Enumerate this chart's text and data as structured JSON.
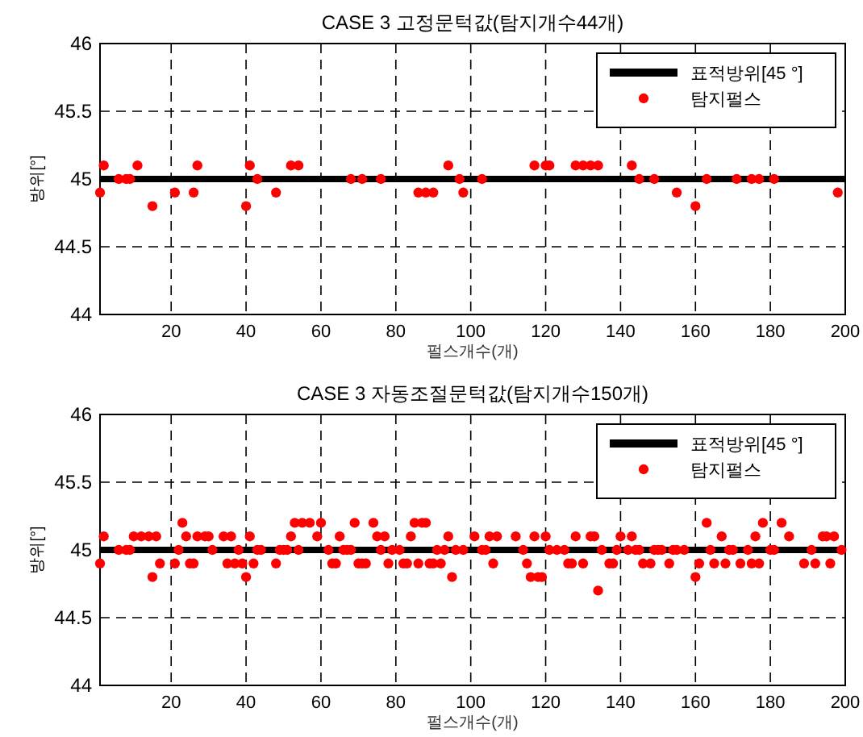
{
  "chart_data": [
    {
      "type": "scatter",
      "title": "CASE 3 고정문턱값(탐지개수44개)",
      "xlabel": "펄스개수(개)",
      "ylabel": "방위[°]",
      "xlim": [
        1,
        200
      ],
      "xticks": [
        20,
        40,
        60,
        80,
        100,
        120,
        140,
        160,
        180,
        200
      ],
      "ylim": [
        44,
        46
      ],
      "yticks": [
        44,
        44.5,
        45,
        45.5,
        46
      ],
      "grid": true,
      "legend": "top right",
      "series": [
        {
          "name": "표적방위[45 °]",
          "type": "line",
          "marker": "none",
          "color": "#000000",
          "x": [
            1,
            200
          ],
          "values": [
            45,
            45
          ]
        },
        {
          "name": "탐지펄스",
          "type": "scatter",
          "marker": "circle",
          "color": "#ff0000",
          "x": [
            1,
            2,
            6,
            8,
            9,
            11,
            15,
            21,
            26,
            27,
            40,
            41,
            43,
            48,
            52,
            54,
            68,
            71,
            76,
            86,
            88,
            90,
            94,
            97,
            98,
            103,
            117,
            120,
            121,
            128,
            130,
            132,
            134,
            143,
            145,
            149,
            155,
            160,
            163,
            171,
            175,
            177,
            181,
            198
          ],
          "values": [
            44.9,
            45.1,
            45,
            45,
            45,
            45.1,
            44.8,
            44.9,
            44.9,
            45.1,
            44.8,
            45.1,
            45,
            44.9,
            45.1,
            45.1,
            45,
            45,
            45,
            44.9,
            44.9,
            44.9,
            45.1,
            45,
            44.9,
            45,
            45.1,
            45.1,
            45.1,
            45.1,
            45.1,
            45.1,
            45.1,
            45.1,
            45,
            45,
            44.9,
            44.8,
            45,
            45,
            45,
            45,
            45,
            44.9
          ]
        }
      ]
    },
    {
      "type": "scatter",
      "title": "CASE 3 자동조절문턱값(탐지개수150개)",
      "xlabel": "펄스개수(개)",
      "ylabel": "방위[°]",
      "xlim": [
        1,
        200
      ],
      "xticks": [
        20,
        40,
        60,
        80,
        100,
        120,
        140,
        160,
        180,
        200
      ],
      "ylim": [
        44,
        46
      ],
      "yticks": [
        44,
        44.5,
        45,
        45.5,
        46
      ],
      "grid": true,
      "legend": "top right",
      "series": [
        {
          "name": "표적방위[45 °]",
          "type": "line",
          "marker": "none",
          "color": "#000000",
          "x": [
            1,
            200
          ],
          "values": [
            45,
            45
          ]
        },
        {
          "name": "탐지펄스",
          "type": "scatter",
          "marker": "circle",
          "color": "#ff0000",
          "x": [
            1,
            2,
            6,
            8,
            9,
            10,
            12,
            14,
            15,
            16,
            17,
            21,
            22,
            23,
            24,
            25,
            26,
            27,
            29,
            30,
            31,
            34,
            35,
            36,
            37,
            38,
            39,
            40,
            41,
            42,
            43,
            44,
            48,
            49,
            50,
            51,
            52,
            53,
            54,
            55,
            57,
            59,
            60,
            62,
            63,
            64,
            65,
            66,
            67,
            68,
            69,
            70,
            71,
            72,
            74,
            75,
            76,
            77,
            78,
            79,
            81,
            82,
            83,
            84,
            85,
            86,
            87,
            88,
            89,
            90,
            91,
            92,
            93,
            94,
            95,
            96,
            98,
            101,
            103,
            104,
            105,
            106,
            107,
            112,
            114,
            115,
            116,
            117,
            118,
            119,
            120,
            121,
            123,
            125,
            126,
            127,
            128,
            130,
            132,
            133,
            134,
            135,
            137,
            138,
            139,
            140,
            142,
            143,
            144,
            145,
            146,
            148,
            149,
            150,
            151,
            153,
            154,
            155,
            157,
            160,
            161,
            163,
            164,
            165,
            167,
            168,
            169,
            170,
            172,
            174,
            175,
            176,
            177,
            178,
            180,
            181,
            183,
            185,
            189,
            191,
            192,
            194,
            195,
            196,
            197,
            199
          ],
          "values": [
            44.9,
            45.1,
            45,
            45,
            45,
            45.1,
            45.1,
            45.1,
            44.8,
            45.1,
            44.9,
            44.9,
            45,
            45.2,
            45.1,
            44.9,
            44.9,
            45.1,
            45.1,
            45.1,
            45,
            45.1,
            44.9,
            45.1,
            44.9,
            45,
            44.9,
            44.8,
            45.1,
            44.9,
            45,
            45,
            44.9,
            45,
            45,
            45,
            45.1,
            45.2,
            45,
            45.2,
            45.2,
            45.1,
            45.2,
            45,
            44.9,
            44.9,
            45.1,
            45,
            45,
            45,
            45.2,
            44.9,
            44.9,
            44.9,
            45.2,
            45.1,
            45,
            45.1,
            44.9,
            45,
            45,
            44.9,
            44.9,
            45.1,
            45.2,
            44.9,
            45.2,
            45.2,
            44.9,
            44.9,
            45,
            44.9,
            45,
            45.1,
            44.8,
            45,
            45,
            45.1,
            45,
            45,
            45.1,
            44.9,
            45.1,
            45.1,
            45,
            44.9,
            44.8,
            45.1,
            44.8,
            44.8,
            45.1,
            45,
            45,
            45,
            44.9,
            44.9,
            45.1,
            44.9,
            45.1,
            45.1,
            44.7,
            45,
            44.9,
            44.9,
            45,
            45.1,
            45,
            45.1,
            45,
            45,
            44.9,
            44.9,
            45,
            45,
            45,
            44.9,
            45,
            45,
            45,
            44.8,
            44.9,
            45.2,
            45,
            44.9,
            45.1,
            44.9,
            45,
            45,
            44.9,
            45,
            44.9,
            45.1,
            44.9,
            45.2,
            45,
            45,
            45.2,
            45.1,
            44.9,
            45,
            44.9,
            45.1,
            45.1,
            44.9,
            45.1,
            45
          ]
        }
      ]
    }
  ]
}
